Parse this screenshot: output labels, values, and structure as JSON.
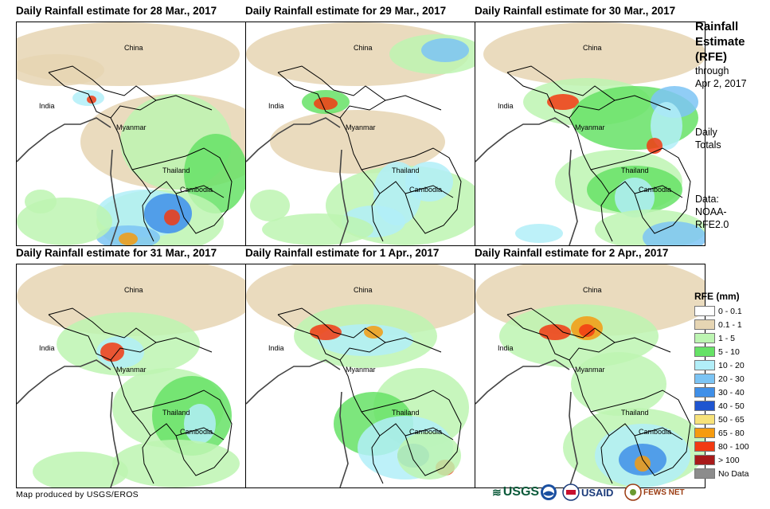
{
  "panels": [
    {
      "title": "Daily Rainfall estimate for 28 Mar., 2017"
    },
    {
      "title": "Daily Rainfall estimate for 29 Mar., 2017"
    },
    {
      "title": "Daily Rainfall estimate for 30 Mar., 2017"
    },
    {
      "title": "Daily Rainfall estimate for 31 Mar., 2017"
    },
    {
      "title": "Daily Rainfall estimate for 1 Apr., 2017"
    },
    {
      "title": "Daily Rainfall estimate for 2 Apr., 2017"
    }
  ],
  "country_labels": {
    "china": "China",
    "india": "India",
    "myanmar": "Myanmar",
    "thailand": "Thailand",
    "cambodia": "Cambodia"
  },
  "side_panel": {
    "title_line1": "Rainfall",
    "title_line2": "Estimate",
    "title_line3": "(RFE)",
    "through_line1": "through",
    "through_line2": "Apr 2, 2017",
    "daily_line1": "Daily",
    "daily_line2": "Totals",
    "data_line1": "Data:",
    "data_line2": "NOAA-",
    "data_line3": "RFE2.0"
  },
  "legend": {
    "title": "RFE (mm)",
    "items": [
      {
        "label": "0 - 0.1",
        "color": "#ffffff"
      },
      {
        "label": "0.1 - 1",
        "color": "#e6d5b3"
      },
      {
        "label": "1 - 5",
        "color": "#bdf5b2"
      },
      {
        "label": "5 - 10",
        "color": "#66e266"
      },
      {
        "label": "10 - 20",
        "color": "#b2eef8"
      },
      {
        "label": "20 - 30",
        "color": "#7cc4f4"
      },
      {
        "label": "30 - 40",
        "color": "#3f8fe8"
      },
      {
        "label": "40 - 50",
        "color": "#1f55d0"
      },
      {
        "label": "50 - 65",
        "color": "#f7e27a"
      },
      {
        "label": "65 - 80",
        "color": "#f59b10"
      },
      {
        "label": "80 - 100",
        "color": "#f23a12"
      },
      {
        "label": "> 100",
        "color": "#a81a1a"
      },
      {
        "label": "No Data",
        "color": "#8c8c8c"
      }
    ]
  },
  "credit": "Map produced by USGS/EROS",
  "logos": {
    "usgs": "USGS",
    "usaid": "USAID",
    "fewsnet": "FEWS NET"
  },
  "colors": {
    "border": "#000000",
    "coast": "#444444"
  }
}
